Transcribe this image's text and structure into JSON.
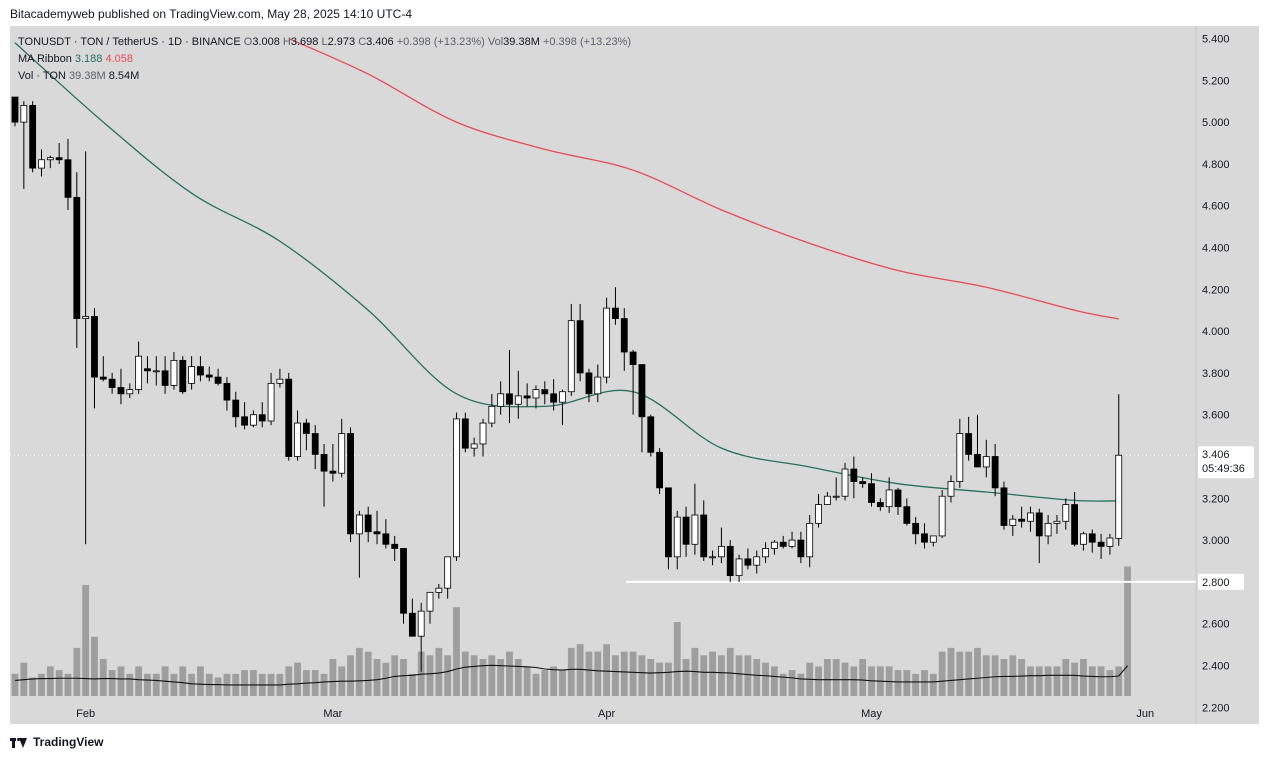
{
  "header": {
    "publisher_line": "Bitacademyweb published on TradingView.com, May 28, 2025 14:10 UTC-4"
  },
  "legend": {
    "symbol": "TONUSDT · TON / TetherUS · 1D · BINANCE",
    "o_label": "O",
    "o_value": "3.008",
    "h_label": "H",
    "h_value": "3.698",
    "l_label": "L",
    "l_value": "2.973",
    "c_label": "C",
    "c_value": "3.406",
    "change": "+0.398 (+13.23%)",
    "vol_label": "Vol",
    "vol_value": "39.38M",
    "vol_change": "+0.398 (+13.23%)",
    "ma_label": "MA Ribbon",
    "ma_short": "3.188",
    "ma_long": "4.058",
    "volume_label": "Vol · TON",
    "volume_value": "39.38M",
    "volume_ma": "8.54M"
  },
  "footer": {
    "brand": "TradingView"
  },
  "colors": {
    "background": "#d9d9d9",
    "ma_short": "#26705e",
    "ma_long": "#e84b54",
    "candle_up": "#ffffff",
    "candle_down": "#000000",
    "volume": "#9e9e9e",
    "support_line": "#ffffff"
  },
  "chart_data": {
    "type": "candlestick",
    "y_range": [
      2.12,
      5.46
    ],
    "y_ticks": [
      "5.400",
      "5.200",
      "5.000",
      "4.800",
      "4.600",
      "4.400",
      "4.200",
      "4.000",
      "3.800",
      "3.600",
      "3.400",
      "3.200",
      "3.000",
      "2.800",
      "2.600",
      "2.400",
      "2.200"
    ],
    "x_ticks": [
      "Feb",
      "Mar",
      "Apr",
      "May",
      "Jun"
    ],
    "current_price_label": "3.406",
    "countdown_label": "05:49:36",
    "support_level": 2.8,
    "support_label": "2.800",
    "x_start_date": "2025-01-24",
    "ohlc": [
      [
        5.12,
        5.12,
        4.98,
        5.0
      ],
      [
        5.0,
        5.1,
        4.68,
        5.08
      ],
      [
        5.08,
        5.1,
        4.76,
        4.78
      ],
      [
        4.78,
        4.87,
        4.74,
        4.82
      ],
      [
        4.82,
        4.84,
        4.78,
        4.83
      ],
      [
        4.83,
        4.9,
        4.8,
        4.82
      ],
      [
        4.82,
        4.92,
        4.58,
        4.64
      ],
      [
        4.64,
        4.76,
        3.92,
        4.06
      ],
      [
        4.06,
        4.86,
        2.98,
        4.07
      ],
      [
        4.07,
        4.11,
        3.63,
        3.78
      ],
      [
        3.78,
        3.88,
        3.76,
        3.77
      ],
      [
        3.77,
        3.8,
        3.7,
        3.73
      ],
      [
        3.73,
        3.82,
        3.65,
        3.7
      ],
      [
        3.7,
        3.75,
        3.68,
        3.72
      ],
      [
        3.72,
        3.95,
        3.7,
        3.88
      ],
      [
        3.82,
        3.88,
        3.75,
        3.81
      ],
      [
        3.81,
        3.88,
        3.74,
        3.81
      ],
      [
        3.81,
        3.88,
        3.7,
        3.74
      ],
      [
        3.74,
        3.9,
        3.72,
        3.86
      ],
      [
        3.86,
        3.88,
        3.7,
        3.71
      ],
      [
        3.75,
        3.88,
        3.72,
        3.83
      ],
      [
        3.83,
        3.88,
        3.76,
        3.79
      ],
      [
        3.79,
        3.83,
        3.76,
        3.78
      ],
      [
        3.78,
        3.82,
        3.74,
        3.75
      ],
      [
        3.75,
        3.78,
        3.62,
        3.67
      ],
      [
        3.67,
        3.71,
        3.54,
        3.59
      ],
      [
        3.59,
        3.66,
        3.53,
        3.55
      ],
      [
        3.55,
        3.62,
        3.54,
        3.6
      ],
      [
        3.6,
        3.66,
        3.54,
        3.57
      ],
      [
        3.57,
        3.8,
        3.55,
        3.75
      ],
      [
        3.75,
        3.82,
        3.73,
        3.77
      ],
      [
        3.77,
        3.8,
        3.38,
        3.4
      ],
      [
        3.4,
        3.62,
        3.38,
        3.56
      ],
      [
        3.56,
        3.58,
        3.43,
        3.51
      ],
      [
        3.51,
        3.55,
        3.34,
        3.41
      ],
      [
        3.41,
        3.46,
        3.16,
        3.33
      ],
      [
        3.33,
        3.46,
        3.28,
        3.32
      ],
      [
        3.32,
        3.58,
        3.3,
        3.51
      ],
      [
        3.51,
        3.54,
        2.99,
        3.03
      ],
      [
        3.03,
        3.14,
        2.82,
        3.12
      ],
      [
        3.12,
        3.16,
        2.99,
        3.04
      ],
      [
        3.04,
        3.14,
        2.98,
        3.03
      ],
      [
        3.03,
        3.1,
        2.96,
        2.98
      ],
      [
        2.98,
        3.02,
        2.9,
        2.96
      ],
      [
        2.96,
        2.96,
        2.6,
        2.65
      ],
      [
        2.65,
        2.72,
        2.54,
        2.54
      ],
      [
        2.54,
        2.7,
        2.37,
        2.66
      ],
      [
        2.66,
        2.72,
        2.6,
        2.75
      ],
      [
        2.75,
        2.79,
        2.72,
        2.77
      ],
      [
        2.77,
        2.92,
        2.72,
        2.92
      ],
      [
        2.92,
        3.61,
        2.9,
        3.58
      ],
      [
        3.58,
        3.61,
        3.42,
        3.44
      ],
      [
        3.44,
        3.49,
        3.4,
        3.46
      ],
      [
        3.46,
        3.58,
        3.4,
        3.56
      ],
      [
        3.56,
        3.7,
        3.54,
        3.64
      ],
      [
        3.64,
        3.76,
        3.6,
        3.7
      ],
      [
        3.7,
        3.91,
        3.56,
        3.65
      ],
      [
        3.65,
        3.81,
        3.58,
        3.69
      ],
      [
        3.69,
        3.75,
        3.64,
        3.68
      ],
      [
        3.68,
        3.74,
        3.63,
        3.72
      ],
      [
        3.72,
        3.76,
        3.65,
        3.7
      ],
      [
        3.7,
        3.77,
        3.62,
        3.66
      ],
      [
        3.66,
        3.72,
        3.55,
        3.71
      ],
      [
        3.71,
        4.13,
        3.69,
        4.05
      ],
      [
        4.05,
        4.13,
        3.76,
        3.8
      ],
      [
        3.8,
        3.82,
        3.66,
        3.7
      ],
      [
        3.7,
        3.84,
        3.66,
        3.78
      ],
      [
        3.78,
        4.16,
        3.75,
        4.11
      ],
      [
        4.11,
        4.21,
        4.03,
        4.06
      ],
      [
        4.06,
        4.11,
        3.81,
        3.9
      ],
      [
        3.9,
        3.91,
        3.6,
        3.84
      ],
      [
        3.84,
        3.84,
        3.42,
        3.59
      ],
      [
        3.59,
        3.6,
        3.4,
        3.42
      ],
      [
        3.42,
        3.44,
        3.22,
        3.25
      ],
      [
        3.25,
        3.25,
        2.86,
        2.92
      ],
      [
        2.92,
        3.14,
        2.86,
        3.11
      ],
      [
        3.11,
        3.16,
        2.92,
        2.98
      ],
      [
        2.98,
        3.27,
        2.93,
        3.12
      ],
      [
        3.12,
        3.19,
        2.9,
        2.92
      ],
      [
        2.92,
        2.95,
        2.88,
        2.92
      ],
      [
        2.92,
        3.06,
        2.89,
        2.97
      ],
      [
        2.97,
        3.0,
        2.8,
        2.83
      ],
      [
        2.83,
        2.93,
        2.8,
        2.91
      ],
      [
        2.91,
        2.96,
        2.86,
        2.88
      ],
      [
        2.88,
        2.95,
        2.84,
        2.92
      ],
      [
        2.92,
        2.99,
        2.89,
        2.96
      ],
      [
        2.96,
        3.0,
        2.93,
        2.99
      ],
      [
        2.99,
        3.02,
        2.96,
        2.97
      ],
      [
        2.97,
        3.04,
        2.96,
        3.0
      ],
      [
        3.0,
        3.04,
        2.89,
        2.92
      ],
      [
        2.92,
        3.12,
        2.87,
        3.08
      ],
      [
        3.08,
        3.22,
        3.06,
        3.17
      ],
      [
        3.17,
        3.23,
        3.17,
        3.21
      ],
      [
        3.21,
        3.3,
        3.19,
        3.21
      ],
      [
        3.21,
        3.37,
        3.19,
        3.34
      ],
      [
        3.34,
        3.4,
        3.2,
        3.28
      ],
      [
        3.28,
        3.3,
        3.25,
        3.27
      ],
      [
        3.27,
        3.32,
        3.16,
        3.18
      ],
      [
        3.18,
        3.2,
        3.14,
        3.16
      ],
      [
        3.16,
        3.3,
        3.13,
        3.24
      ],
      [
        3.24,
        3.25,
        3.12,
        3.16
      ],
      [
        3.16,
        3.2,
        3.07,
        3.08
      ],
      [
        3.08,
        3.11,
        2.98,
        3.03
      ],
      [
        3.03,
        3.08,
        2.96,
        2.99
      ],
      [
        2.99,
        3.02,
        2.97,
        3.02
      ],
      [
        3.02,
        3.24,
        3.01,
        3.21
      ],
      [
        3.21,
        3.31,
        3.18,
        3.28
      ],
      [
        3.28,
        3.58,
        3.25,
        3.51
      ],
      [
        3.51,
        3.59,
        3.38,
        3.41
      ],
      [
        3.41,
        3.6,
        3.36,
        3.35
      ],
      [
        3.35,
        3.48,
        3.3,
        3.4
      ],
      [
        3.4,
        3.46,
        3.21,
        3.25
      ],
      [
        3.25,
        3.28,
        3.05,
        3.07
      ],
      [
        3.07,
        3.12,
        3.02,
        3.1
      ],
      [
        3.1,
        3.16,
        3.06,
        3.09
      ],
      [
        3.09,
        3.16,
        3.04,
        3.13
      ],
      [
        3.13,
        3.15,
        2.89,
        3.02
      ],
      [
        3.02,
        3.12,
        2.98,
        3.08
      ],
      [
        3.08,
        3.12,
        3.03,
        3.09
      ],
      [
        3.09,
        3.2,
        3.05,
        3.17
      ],
      [
        3.17,
        3.23,
        2.97,
        2.98
      ],
      [
        2.98,
        3.04,
        2.95,
        3.03
      ],
      [
        3.03,
        3.05,
        2.94,
        2.99
      ],
      [
        2.99,
        3.03,
        2.91,
        2.97
      ],
      [
        2.97,
        3.03,
        2.93,
        3.01
      ],
      [
        3.008,
        3.698,
        2.973,
        3.406
      ]
    ],
    "volume_range": [
      0,
      4.0
    ],
    "volume": [
      0.6,
      0.9,
      0.5,
      0.6,
      0.8,
      0.7,
      0.6,
      1.3,
      3.0,
      1.6,
      1.0,
      0.7,
      0.8,
      0.6,
      0.8,
      0.6,
      0.6,
      0.8,
      0.6,
      0.8,
      0.6,
      0.8,
      0.6,
      0.5,
      0.6,
      0.6,
      0.7,
      0.7,
      0.6,
      0.6,
      0.6,
      0.8,
      0.9,
      0.7,
      0.7,
      0.6,
      1.0,
      0.8,
      1.1,
      1.3,
      1.2,
      1.0,
      0.9,
      1.1,
      1.0,
      0.6,
      1.2,
      1.1,
      1.3,
      1.1,
      2.4,
      1.2,
      1.1,
      1.0,
      1.1,
      1.0,
      1.2,
      1.0,
      0.8,
      0.6,
      0.7,
      0.8,
      0.7,
      1.3,
      1.4,
      1.2,
      1.2,
      1.4,
      1.1,
      1.2,
      1.2,
      1.1,
      1.0,
      0.9,
      0.9,
      2.0,
      1.0,
      1.3,
      1.1,
      1.2,
      1.1,
      1.3,
      1.1,
      1.1,
      1.0,
      0.9,
      0.8,
      0.6,
      0.7,
      0.6,
      0.9,
      0.8,
      1.0,
      1.0,
      0.9,
      0.8,
      1.0,
      0.8,
      0.8,
      0.8,
      0.7,
      0.7,
      0.6,
      0.7,
      0.6,
      1.2,
      1.3,
      1.2,
      1.2,
      1.3,
      1.1,
      1.1,
      1.0,
      1.1,
      1.0,
      0.8,
      0.8,
      0.8,
      0.8,
      1.0,
      0.9,
      1.0,
      0.8,
      0.8,
      0.7,
      0.8,
      3.5
    ],
    "volume_ma": [
      0.42,
      0.44,
      0.46,
      0.47,
      0.47,
      0.48,
      0.48,
      0.48,
      0.47,
      0.46,
      0.47,
      0.47,
      0.46,
      0.46,
      0.44,
      0.43,
      0.42,
      0.4,
      0.38,
      0.36,
      0.33,
      0.32,
      0.31,
      0.31,
      0.3,
      0.3,
      0.3,
      0.3,
      0.3,
      0.3,
      0.3,
      0.32,
      0.33,
      0.35,
      0.36,
      0.38,
      0.39,
      0.4,
      0.4,
      0.41,
      0.42,
      0.44,
      0.48,
      0.53,
      0.55,
      0.56,
      0.59,
      0.6,
      0.62,
      0.66,
      0.73,
      0.78,
      0.8,
      0.82,
      0.83,
      0.82,
      0.81,
      0.8,
      0.79,
      0.77,
      0.73,
      0.71,
      0.7,
      0.72,
      0.72,
      0.7,
      0.68,
      0.67,
      0.66,
      0.65,
      0.64,
      0.63,
      0.62,
      0.63,
      0.64,
      0.66,
      0.67,
      0.66,
      0.64,
      0.64,
      0.63,
      0.62,
      0.6,
      0.58,
      0.56,
      0.55,
      0.53,
      0.51,
      0.49,
      0.46,
      0.45,
      0.44,
      0.44,
      0.44,
      0.44,
      0.44,
      0.43,
      0.41,
      0.4,
      0.39,
      0.38,
      0.38,
      0.38,
      0.38,
      0.38,
      0.4,
      0.42,
      0.44,
      0.46,
      0.48,
      0.5,
      0.52,
      0.53,
      0.53,
      0.54,
      0.55,
      0.55,
      0.56,
      0.56,
      0.56,
      0.56,
      0.54,
      0.53,
      0.52,
      0.52,
      0.54,
      0.82
    ],
    "ma_short": [
      [
        0,
        5.38
      ],
      [
        10,
        5.0
      ],
      [
        20,
        4.66
      ],
      [
        30,
        4.43
      ],
      [
        40,
        4.1
      ],
      [
        50,
        3.7
      ],
      [
        60,
        3.64
      ],
      [
        70,
        3.71
      ],
      [
        80,
        3.44
      ],
      [
        90,
        3.35
      ],
      [
        100,
        3.27
      ],
      [
        110,
        3.23
      ],
      [
        120,
        3.19
      ],
      [
        125,
        3.188
      ]
    ],
    "ma_long": [
      [
        31,
        5.4
      ],
      [
        40,
        5.23
      ],
      [
        50,
        5.0
      ],
      [
        60,
        4.87
      ],
      [
        70,
        4.77
      ],
      [
        80,
        4.58
      ],
      [
        90,
        4.42
      ],
      [
        100,
        4.29
      ],
      [
        110,
        4.21
      ],
      [
        120,
        4.1
      ],
      [
        125,
        4.058
      ]
    ],
    "series": [
      {
        "name": "TONUSDT"
      },
      {
        "name": "MA Ribbon"
      },
      {
        "name": "Vol · TON"
      }
    ]
  }
}
